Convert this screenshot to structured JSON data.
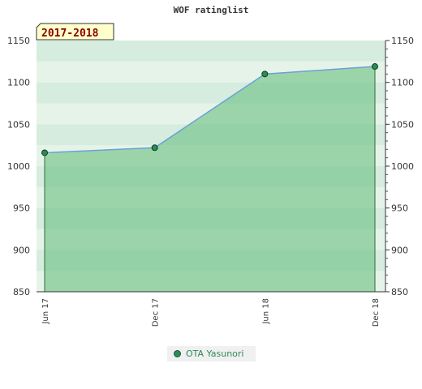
{
  "title": "WOF ratinglist",
  "chart_data": {
    "type": "line",
    "period_label": "2017-2018",
    "x": [
      "Jun 17",
      "Dec 17",
      "Jun 18",
      "Dec 18"
    ],
    "series": [
      {
        "name": "OTA Yasunori",
        "values": [
          1016,
          1022,
          1110,
          1119
        ]
      }
    ],
    "ylim": [
      850,
      1150
    ],
    "y_ticks": [
      "850",
      "900",
      "950",
      "1000",
      "1050",
      "1100",
      "1150"
    ],
    "grid": false,
    "legend_position": "bottom",
    "colors": {
      "line": "#6aa0d8",
      "fill": "#6abf80",
      "marker": "#2e8b57",
      "badge_bg": "#ffffcc"
    }
  }
}
